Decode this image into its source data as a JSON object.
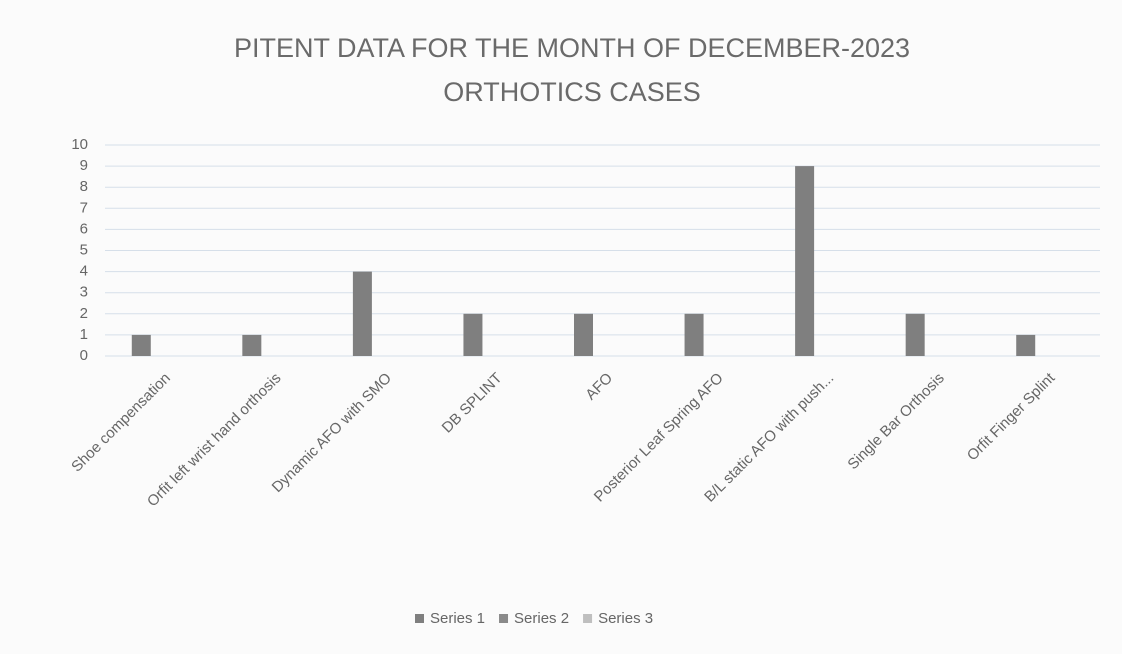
{
  "chart_data": {
    "type": "bar",
    "title": "PITENT DATA FOR THE MONTH OF DECEMBER-2023",
    "subtitle": "ORTHOTICS CASES",
    "categories": [
      "Shoe compensation",
      "Orfit left wrist hand orthosis",
      "Dynamic AFO with SMO",
      "DB SPLINT",
      "AFO",
      "Posterior Leaf Spring AFO",
      "B/L static AFO with push...",
      "Single Bar Orthosis",
      "Orfit Finger Splint"
    ],
    "series": [
      {
        "name": "Series 1",
        "color": "#7f7f7f",
        "values": [
          1,
          1,
          4,
          2,
          2,
          2,
          9,
          2,
          1
        ]
      },
      {
        "name": "Series 2",
        "color": "#8a8a8a",
        "values": [
          null,
          null,
          null,
          null,
          null,
          null,
          null,
          null,
          null
        ]
      },
      {
        "name": "Series 3",
        "color": "#bfbfbf",
        "values": [
          null,
          null,
          null,
          null,
          null,
          null,
          null,
          null,
          null
        ]
      }
    ],
    "ylim": [
      0,
      10
    ],
    "yticks": [
      0,
      1,
      2,
      3,
      4,
      5,
      6,
      7,
      8,
      9,
      10
    ],
    "grid": true,
    "legend": "bottom"
  }
}
